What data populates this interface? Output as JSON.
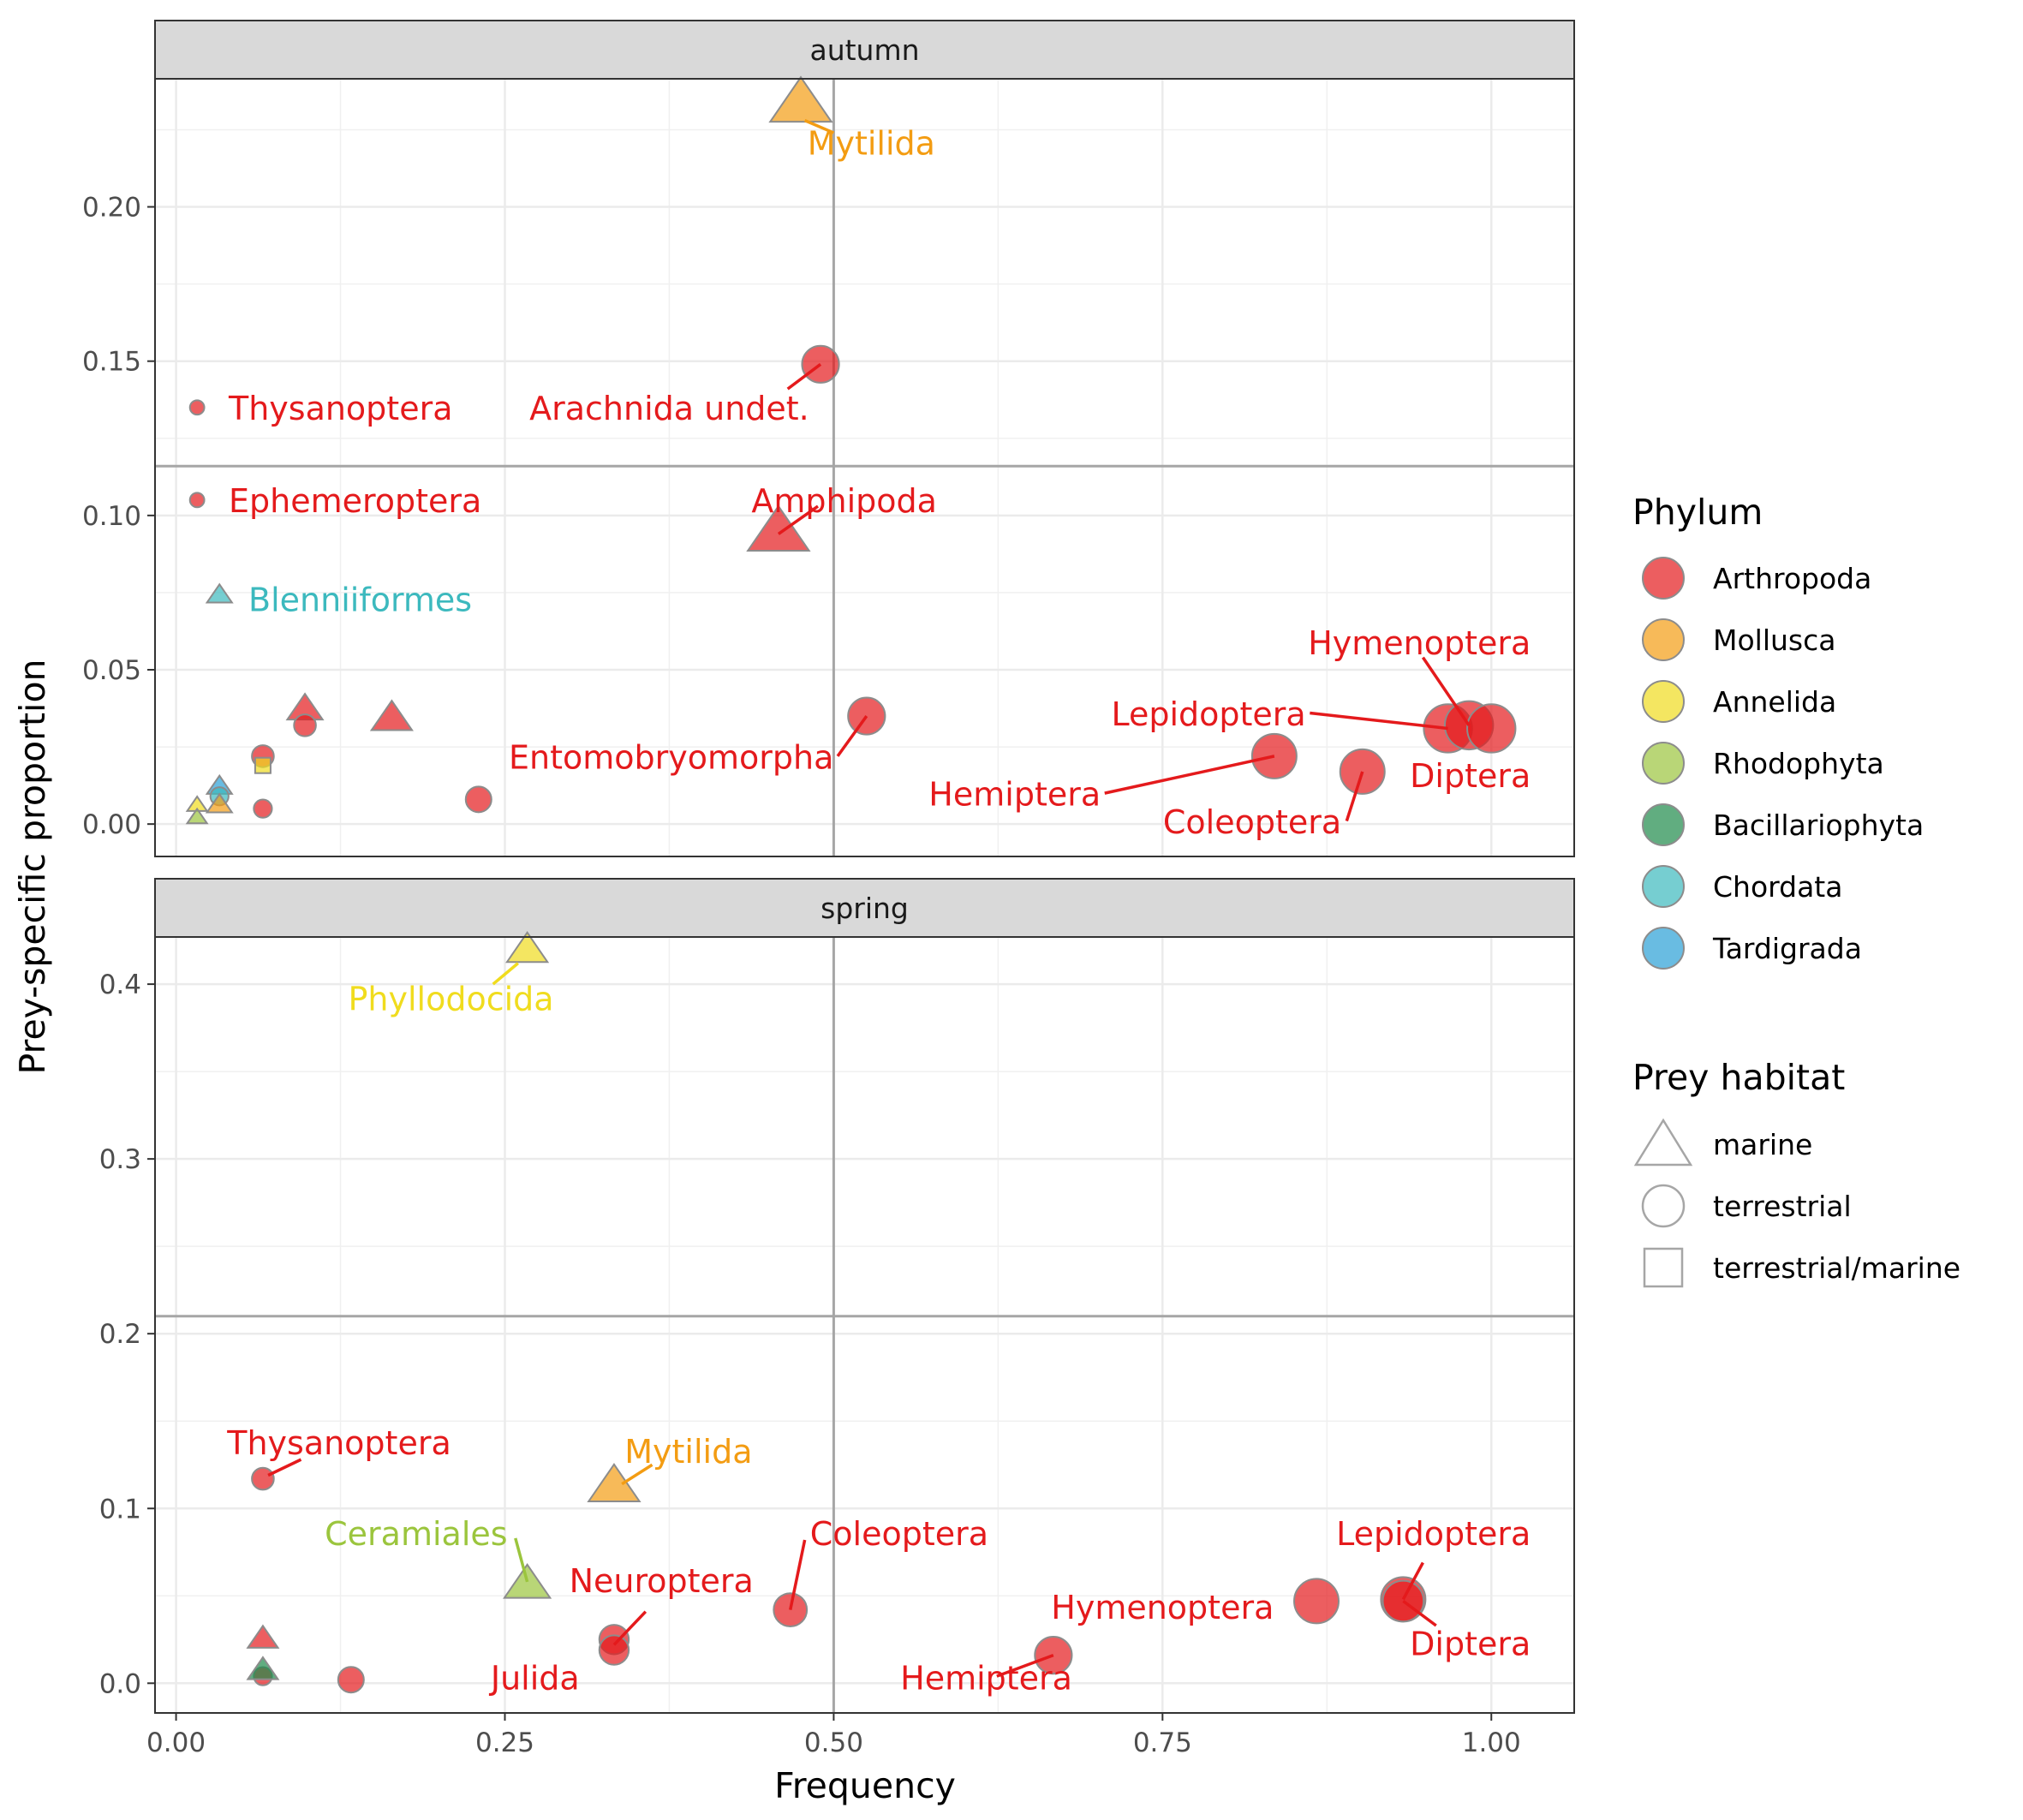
{
  "chart_data": {
    "type": "scatter",
    "xlabel": "Frequency",
    "ylabel": "Prey-specific proportion",
    "xlim": [
      -0.016,
      1.063
    ],
    "xticks": [
      "0.00",
      "0.25",
      "0.50",
      "0.75",
      "1.00"
    ],
    "xtick_values": [
      0,
      0.25,
      0.5,
      0.75,
      1.0
    ],
    "grid": true,
    "legend_placement": "right",
    "legends": [
      {
        "title": "Phylum",
        "kind": "fill",
        "entries": [
          {
            "label": "Arthropoda",
            "color": "#E41A1C"
          },
          {
            "label": "Mollusca",
            "color": "#F39C12"
          },
          {
            "label": "Annelida",
            "color": "#F0DC1E"
          },
          {
            "label": "Rhodophyta",
            "color": "#9BC53D"
          },
          {
            "label": "Bacillariophyta",
            "color": "#1E8A4A"
          },
          {
            "label": "Chordata",
            "color": "#3CB9BE"
          },
          {
            "label": "Tardigrada",
            "color": "#2A9FD6"
          }
        ]
      },
      {
        "title": "Prey habitat",
        "kind": "shape",
        "entries": [
          {
            "label": "marine",
            "shape": "triangle"
          },
          {
            "label": "terrestrial",
            "shape": "circle"
          },
          {
            "label": "terrestrial/marine",
            "shape": "square"
          }
        ]
      }
    ],
    "panels": [
      {
        "strip": "autumn",
        "ylim": [
          -0.0105,
          0.2415
        ],
        "yticks": [
          "0.00",
          "0.05",
          "0.10",
          "0.15",
          "0.20"
        ],
        "ytick_values": [
          0,
          0.05,
          0.1,
          0.15,
          0.2
        ],
        "vline": 0.5,
        "hline": 0.116,
        "points": [
          {
            "x": 0.475,
            "y": 0.233,
            "phylum": "Mollusca",
            "habitat": "marine",
            "size": 5
          },
          {
            "x": 0.49,
            "y": 0.149,
            "phylum": "Arthropoda",
            "habitat": "terrestrial",
            "size": 4
          },
          {
            "x": 0.458,
            "y": 0.094,
            "phylum": "Arthropoda",
            "habitat": "marine",
            "size": 5
          },
          {
            "x": 0.016,
            "y": 0.135,
            "phylum": "Arthropoda",
            "habitat": "terrestrial",
            "size": 1
          },
          {
            "x": 0.016,
            "y": 0.105,
            "phylum": "Arthropoda",
            "habitat": "terrestrial",
            "size": 1
          },
          {
            "x": 0.033,
            "y": 0.074,
            "phylum": "Chordata",
            "habitat": "marine",
            "size": 1.5
          },
          {
            "x": 0.525,
            "y": 0.035,
            "phylum": "Arthropoda",
            "habitat": "terrestrial",
            "size": 4
          },
          {
            "x": 0.835,
            "y": 0.022,
            "phylum": "Arthropoda",
            "habitat": "terrestrial",
            "size": 5
          },
          {
            "x": 0.902,
            "y": 0.017,
            "phylum": "Arthropoda",
            "habitat": "terrestrial",
            "size": 5
          },
          {
            "x": 0.967,
            "y": 0.031,
            "phylum": "Arthropoda",
            "habitat": "terrestrial",
            "size": 5.5
          },
          {
            "x": 0.983,
            "y": 0.032,
            "phylum": "Arthropoda",
            "habitat": "terrestrial",
            "size": 5.5
          },
          {
            "x": 1.0,
            "y": 0.031,
            "phylum": "Arthropoda",
            "habitat": "terrestrial",
            "size": 5.5
          },
          {
            "x": 0.098,
            "y": 0.037,
            "phylum": "Arthropoda",
            "habitat": "marine",
            "size": 2.5
          },
          {
            "x": 0.098,
            "y": 0.032,
            "phylum": "Arthropoda",
            "habitat": "terrestrial",
            "size": 2
          },
          {
            "x": 0.164,
            "y": 0.034,
            "phylum": "Arthropoda",
            "habitat": "marine",
            "size": 3
          },
          {
            "x": 0.066,
            "y": 0.022,
            "phylum": "Arthropoda",
            "habitat": "terrestrial",
            "size": 2
          },
          {
            "x": 0.066,
            "y": 0.019,
            "phylum": "Annelida",
            "habitat": "terrestrial/marine",
            "size": 1.5
          },
          {
            "x": 0.066,
            "y": 0.005,
            "phylum": "Arthropoda",
            "habitat": "terrestrial",
            "size": 1.5
          },
          {
            "x": 0.23,
            "y": 0.008,
            "phylum": "Arthropoda",
            "habitat": "terrestrial",
            "size": 2.5
          },
          {
            "x": 0.033,
            "y": 0.012,
            "phylum": "Tardigrada",
            "habitat": "marine",
            "size": 1.5
          },
          {
            "x": 0.033,
            "y": 0.009,
            "phylum": "Chordata",
            "habitat": "terrestrial",
            "size": 1.5
          },
          {
            "x": 0.033,
            "y": 0.006,
            "phylum": "Mollusca",
            "habitat": "marine",
            "size": 1.5
          },
          {
            "x": 0.016,
            "y": 0.006,
            "phylum": "Annelida",
            "habitat": "marine",
            "size": 1
          },
          {
            "x": 0.016,
            "y": 0.002,
            "phylum": "Rhodophyta",
            "habitat": "marine",
            "size": 1
          }
        ],
        "labels": [
          {
            "text": "Mytilida",
            "phylum": "Mollusca",
            "x": 0.48,
            "y": 0.217,
            "anchor": "start",
            "line_from": [
              0.478,
              0.228
            ],
            "line_to": [
              0.5,
              0.224
            ]
          },
          {
            "text": "Thysanoptera",
            "phylum": "Arthropoda",
            "x": 0.04,
            "y": 0.131,
            "anchor": "start"
          },
          {
            "text": "Arachnida undet.",
            "phylum": "Arthropoda",
            "x": 0.375,
            "y": 0.131,
            "anchor": "middle",
            "line_from": [
              0.49,
              0.149
            ],
            "line_to": [
              0.465,
              0.141
            ]
          },
          {
            "text": "Ephemeroptera",
            "phylum": "Arthropoda",
            "x": 0.04,
            "y": 0.101,
            "anchor": "start"
          },
          {
            "text": "Amphipoda",
            "phylum": "Arthropoda",
            "x": 0.508,
            "y": 0.101,
            "anchor": "middle",
            "line_from": [
              0.458,
              0.094
            ],
            "line_to": [
              0.488,
              0.103
            ]
          },
          {
            "text": "Blenniiformes",
            "phylum": "Chordata",
            "x": 0.055,
            "y": 0.069,
            "anchor": "start"
          },
          {
            "text": "Hymenoptera",
            "phylum": "Arthropoda",
            "x": 1.03,
            "y": 0.055,
            "anchor": "end",
            "line_from": [
              0.948,
              0.054
            ],
            "line_to": [
              0.983,
              0.032
            ]
          },
          {
            "text": "Lepidoptera",
            "phylum": "Arthropoda",
            "x": 0.859,
            "y": 0.032,
            "anchor": "end",
            "line_from": [
              0.862,
              0.036
            ],
            "line_to": [
              0.967,
              0.031
            ]
          },
          {
            "text": "Entomobryomorpha",
            "phylum": "Arthropoda",
            "x": 0.5,
            "y": 0.018,
            "anchor": "end",
            "line_from": [
              0.503,
              0.022
            ],
            "line_to": [
              0.525,
              0.035
            ]
          },
          {
            "text": "Diptera",
            "phylum": "Arthropoda",
            "x": 1.03,
            "y": 0.012,
            "anchor": "end"
          },
          {
            "text": "Hemiptera",
            "phylum": "Arthropoda",
            "x": 0.703,
            "y": 0.006,
            "anchor": "end",
            "line_from": [
              0.706,
              0.01
            ],
            "line_to": [
              0.835,
              0.022
            ]
          },
          {
            "text": "Coleoptera",
            "phylum": "Arthropoda",
            "x": 0.886,
            "y": -0.003,
            "anchor": "end",
            "line_from": [
              0.89,
              0.001
            ],
            "line_to": [
              0.902,
              0.017
            ]
          }
        ]
      },
      {
        "strip": "spring",
        "ylim": [
          -0.017,
          0.427
        ],
        "yticks": [
          "0.0",
          "0.1",
          "0.2",
          "0.3",
          "0.4"
        ],
        "ytick_values": [
          0,
          0.1,
          0.2,
          0.3,
          0.4
        ],
        "vline": 0.5,
        "hline": 0.21,
        "points": [
          {
            "x": 0.267,
            "y": 0.419,
            "phylum": "Annelida",
            "habitat": "marine",
            "size": 3
          },
          {
            "x": 0.066,
            "y": 0.117,
            "phylum": "Arthropoda",
            "habitat": "terrestrial",
            "size": 2
          },
          {
            "x": 0.333,
            "y": 0.112,
            "phylum": "Mollusca",
            "habitat": "marine",
            "size": 4
          },
          {
            "x": 0.267,
            "y": 0.056,
            "phylum": "Rhodophyta",
            "habitat": "marine",
            "size": 3.5
          },
          {
            "x": 0.333,
            "y": 0.025,
            "phylum": "Arthropoda",
            "habitat": "terrestrial",
            "size": 3
          },
          {
            "x": 0.333,
            "y": 0.019,
            "phylum": "Arthropoda",
            "habitat": "terrestrial",
            "size": 3
          },
          {
            "x": 0.467,
            "y": 0.042,
            "phylum": "Arthropoda",
            "habitat": "terrestrial",
            "size": 3.5
          },
          {
            "x": 0.667,
            "y": 0.016,
            "phylum": "Arthropoda",
            "habitat": "terrestrial",
            "size": 4
          },
          {
            "x": 0.867,
            "y": 0.047,
            "phylum": "Arthropoda",
            "habitat": "terrestrial",
            "size": 5
          },
          {
            "x": 0.933,
            "y": 0.048,
            "phylum": "Arthropoda",
            "habitat": "terrestrial",
            "size": 5
          },
          {
            "x": 0.933,
            "y": 0.047,
            "phylum": "Arthropoda",
            "habitat": "terrestrial",
            "size": 4.5
          },
          {
            "x": 0.066,
            "y": 0.025,
            "phylum": "Arthropoda",
            "habitat": "marine",
            "size": 2
          },
          {
            "x": 0.066,
            "y": 0.004,
            "phylum": "Arthropoda",
            "habitat": "terrestrial",
            "size": 1.5
          },
          {
            "x": 0.066,
            "y": 0.007,
            "phylum": "Bacillariophyta",
            "habitat": "marine",
            "size": 2
          },
          {
            "x": 0.133,
            "y": 0.002,
            "phylum": "Arthropoda",
            "habitat": "terrestrial",
            "size": 2.5
          }
        ],
        "labels": [
          {
            "text": "Phyllodocida",
            "phylum": "Annelida",
            "x": 0.209,
            "y": 0.385,
            "anchor": "middle",
            "line_from": [
              0.241,
              0.4
            ],
            "line_to": [
              0.26,
              0.412
            ]
          },
          {
            "text": "Thysanoptera",
            "phylum": "Arthropoda",
            "x": 0.124,
            "y": 0.131,
            "anchor": "middle",
            "line_from": [
              0.095,
              0.128
            ],
            "line_to": [
              0.07,
              0.119
            ]
          },
          {
            "text": "Mytilida",
            "phylum": "Mollusca",
            "x": 0.341,
            "y": 0.126,
            "anchor": "start",
            "line_from": [
              0.362,
              0.125
            ],
            "line_to": [
              0.339,
              0.114
            ]
          },
          {
            "text": "Ceramiales",
            "phylum": "Rhodophyta",
            "x": 0.252,
            "y": 0.079,
            "anchor": "end",
            "line_from": [
              0.258,
              0.083
            ],
            "line_to": [
              0.267,
              0.058
            ]
          },
          {
            "text": "Coleoptera",
            "phylum": "Arthropoda",
            "x": 0.482,
            "y": 0.079,
            "anchor": "start",
            "line_from": [
              0.478,
              0.082
            ],
            "line_to": [
              0.467,
              0.042
            ]
          },
          {
            "text": "Neuroptera",
            "phylum": "Arthropoda",
            "x": 0.369,
            "y": 0.052,
            "anchor": "middle",
            "line_from": [
              0.357,
              0.041
            ],
            "line_to": [
              0.333,
              0.022
            ]
          },
          {
            "text": "Hymenoptera",
            "phylum": "Arthropoda",
            "x": 0.75,
            "y": 0.037,
            "anchor": "middle"
          },
          {
            "text": "Lepidoptera",
            "phylum": "Arthropoda",
            "x": 1.03,
            "y": 0.079,
            "anchor": "end",
            "line_from": [
              0.948,
              0.069
            ],
            "line_to": [
              0.933,
              0.048
            ]
          },
          {
            "text": "Diptera",
            "phylum": "Arthropoda",
            "x": 1.03,
            "y": 0.016,
            "anchor": "end",
            "line_from": [
              0.958,
              0.033
            ],
            "line_to": [
              0.933,
              0.047
            ]
          },
          {
            "text": "Hemiptera",
            "phylum": "Arthropoda",
            "x": 0.616,
            "y": -0.0035,
            "anchor": "middle",
            "line_from": [
              0.624,
              0.004
            ],
            "line_to": [
              0.667,
              0.016
            ]
          },
          {
            "text": "Julida",
            "phylum": "Arthropoda",
            "x": 0.273,
            "y": -0.0035,
            "anchor": "middle"
          }
        ]
      }
    ]
  }
}
